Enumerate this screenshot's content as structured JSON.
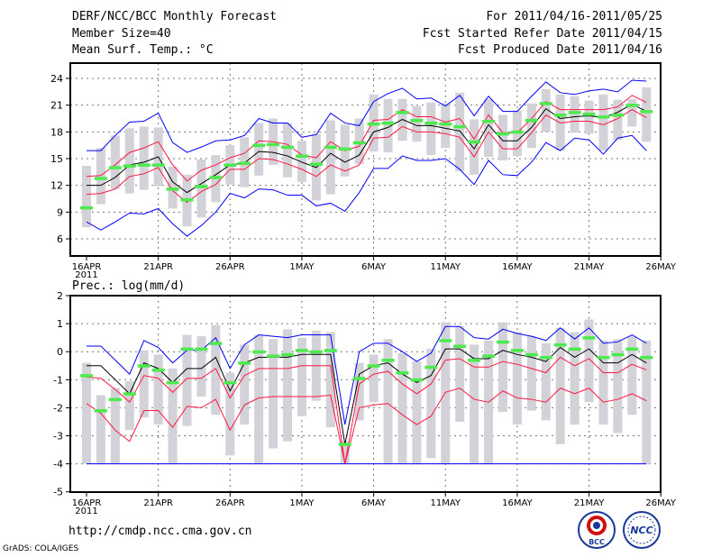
{
  "header": {
    "title": "DERF/NCC/BCC Monthly Forecast",
    "member_size": "Member Size=40",
    "variable": "Mean Surf. Temp.: °C",
    "period": "For 2011/04/16-2011/05/25",
    "start_date": "Fcst Started Refer Date 2011/04/15",
    "produced_date": "Fcst Produced Date 2011/04/16"
  },
  "footer": {
    "url": "http://cmdp.ncc.cma.gov.cn",
    "grads": "GrADS: COLA/IGES",
    "logo_bcc": "BCC",
    "logo_ncc": "NCC"
  },
  "colors": {
    "blue": "#0000ff",
    "red": "#ff1744",
    "median": "#000000",
    "green": "#4cea4c",
    "spread": "#d2d2d8"
  },
  "chart_data": [
    {
      "type": "line",
      "title": "Mean Surf. Temp.: °C",
      "x_ticks": {
        "days": [
          0,
          5,
          10,
          15,
          20,
          25,
          30,
          35,
          40
        ],
        "labels": [
          "16APR",
          "21APR",
          "26APR",
          "1MAY",
          "6MAY",
          "11MAY",
          "16MAY",
          "21MAY",
          "26MAY"
        ],
        "year": "2011"
      },
      "ylim": [
        3,
        25.5
      ],
      "y_ticks": [
        6,
        9,
        12,
        15,
        18,
        21,
        24
      ],
      "grid": true,
      "series": [
        {
          "name": "upper-blue",
          "values": [
            15.9,
            15.9,
            17.6,
            19.1,
            19.2,
            20.1,
            16.8,
            15.7,
            16.3,
            17.0,
            17.1,
            17.6,
            19.5,
            19.0,
            19.0,
            17.4,
            17.7,
            20.1,
            19.0,
            18.7,
            21.4,
            22.3,
            22.9,
            21.7,
            21.8,
            20.9,
            22.1,
            19.8,
            22.0,
            20.3,
            20.3,
            22.0,
            23.6,
            22.4,
            22.2,
            22.6,
            22.8,
            22.5,
            23.8,
            23.7
          ]
        },
        {
          "name": "upper-red",
          "values": [
            13.0,
            13.1,
            14.3,
            15.7,
            16.2,
            16.9,
            14.3,
            12.5,
            13.7,
            14.3,
            15.1,
            15.6,
            17.0,
            16.9,
            16.6,
            15.4,
            15.1,
            16.9,
            15.9,
            16.4,
            19.3,
            19.4,
            20.5,
            19.7,
            19.7,
            19.1,
            19.5,
            17.2,
            19.9,
            17.9,
            17.9,
            19.5,
            21.4,
            20.5,
            20.5,
            20.5,
            20.5,
            20.8,
            22.1,
            21.3
          ]
        },
        {
          "name": "median",
          "values": [
            12.0,
            12.0,
            12.9,
            14.3,
            14.6,
            15.2,
            12.4,
            11.2,
            12.2,
            13.2,
            14.3,
            14.5,
            15.8,
            15.7,
            15.3,
            14.6,
            14.0,
            15.6,
            14.6,
            15.4,
            18.0,
            18.5,
            19.4,
            18.7,
            18.7,
            18.4,
            18.1,
            16.1,
            18.8,
            17.0,
            17.0,
            18.5,
            20.6,
            19.5,
            19.7,
            19.8,
            19.6,
            20.2,
            21.1,
            20.3
          ]
        },
        {
          "name": "lower-red",
          "values": [
            11.0,
            11.1,
            11.6,
            13.0,
            13.3,
            14.0,
            11.4,
            10.1,
            11.3,
            12.1,
            13.8,
            13.8,
            15.0,
            14.9,
            14.4,
            13.8,
            13.0,
            14.3,
            13.6,
            14.3,
            17.3,
            17.4,
            18.6,
            18.0,
            18.0,
            17.8,
            17.4,
            15.2,
            18.0,
            16.1,
            16.1,
            17.9,
            19.9,
            19.0,
            19.2,
            19.2,
            18.8,
            19.5,
            20.5,
            19.6
          ]
        },
        {
          "name": "lower-blue",
          "values": [
            7.9,
            7.0,
            7.9,
            8.9,
            8.8,
            9.4,
            7.7,
            6.3,
            7.5,
            9.0,
            11.1,
            10.6,
            11.6,
            11.5,
            10.9,
            10.9,
            9.7,
            10.0,
            9.1,
            11.2,
            13.9,
            13.9,
            15.3,
            14.8,
            14.8,
            15.0,
            13.8,
            12.1,
            14.8,
            13.2,
            13.1,
            14.6,
            16.8,
            15.9,
            17.3,
            17.1,
            15.5,
            17.3,
            17.6,
            15.9
          ]
        },
        {
          "name": "green",
          "values": [
            9.5,
            12.8,
            14.0,
            14.2,
            14.3,
            14.3,
            11.6,
            10.4,
            11.9,
            12.9,
            14.3,
            14.5,
            16.5,
            16.6,
            16.3,
            15.3,
            14.4,
            16.3,
            16.1,
            16.8,
            18.9,
            19.0,
            20.2,
            19.3,
            19.0,
            18.9,
            18.6,
            16.9,
            19.2,
            17.8,
            18.0,
            19.3,
            21.2,
            19.9,
            20.2,
            20.0,
            19.7,
            19.9,
            21.0,
            20.3
          ]
        }
      ],
      "spread_max": [
        14.2,
        16.2,
        17.6,
        18.4,
        18.6,
        18.5,
        14.1,
        13.2,
        14.9,
        15.4,
        16.5,
        17.4,
        19.0,
        19.5,
        19.0,
        17.0,
        17.8,
        19.3,
        18.8,
        19.5,
        22.2,
        21.7,
        21.7,
        20.9,
        21.3,
        21.2,
        22.4,
        19.4,
        21.7,
        19.9,
        20.4,
        21.2,
        22.8,
        22.2,
        22.0,
        21.5,
        22.2,
        21.6,
        21.7,
        23.0
      ],
      "spread_min": [
        7.3,
        9.9,
        11.6,
        11.1,
        11.5,
        11.9,
        9.4,
        7.4,
        8.4,
        10.1,
        12.1,
        11.8,
        13.1,
        14.3,
        12.9,
        12.4,
        10.3,
        11.0,
        13.0,
        14.4,
        15.8,
        15.7,
        17.0,
        16.9,
        15.4,
        16.2,
        13.6,
        13.2,
        15.2,
        14.8,
        15.3,
        16.2,
        18.0,
        15.9,
        17.9,
        17.8,
        15.9,
        17.1,
        18.6,
        16.9
      ]
    },
    {
      "type": "line",
      "title": "Prec.: log(mm/d)",
      "x_ticks": {
        "days": [
          0,
          5,
          10,
          15,
          20,
          25,
          30,
          35,
          40
        ],
        "labels": [
          "16APR",
          "21APR",
          "26APR",
          "1MAY",
          "6MAY",
          "11MAY",
          "16MAY",
          "21MAY",
          "26MAY"
        ],
        "year": "2011"
      },
      "ylim": [
        -5,
        2
      ],
      "y_ticks": [
        2,
        1,
        0,
        -1,
        -2,
        -3,
        -4,
        -5
      ],
      "grid": true,
      "series": [
        {
          "name": "upper-blue",
          "values": [
            0.2,
            0.2,
            -0.3,
            -0.8,
            0.4,
            0.15,
            -0.4,
            0.05,
            0.05,
            0.5,
            -0.6,
            0.25,
            0.6,
            0.55,
            0.5,
            0.6,
            0.6,
            0.6,
            -2.6,
            0,
            0.3,
            0.3,
            0,
            -0.35,
            -0.05,
            0.9,
            0.9,
            0.5,
            0.45,
            0.8,
            0.65,
            0.55,
            0.4,
            0.85,
            0.45,
            0.85,
            0.3,
            0.35,
            0.6,
            0.3
          ]
        },
        {
          "name": "upper-red",
          "values": [
            -0.9,
            -0.95,
            -1.35,
            -1.8,
            -0.85,
            -0.95,
            -1.45,
            -0.95,
            -0.95,
            -0.6,
            -1.65,
            -0.85,
            -0.6,
            -0.6,
            -0.6,
            -0.5,
            -0.5,
            -0.5,
            -4.0,
            -1.15,
            -0.8,
            -0.7,
            -1.15,
            -1.5,
            -1.15,
            -0.3,
            -0.25,
            -0.55,
            -0.55,
            -0.35,
            -0.45,
            -0.6,
            -0.75,
            -0.2,
            -0.5,
            -0.25,
            -0.75,
            -0.75,
            -0.45,
            -0.65
          ]
        },
        {
          "name": "median",
          "values": [
            -0.5,
            -0.5,
            -1.0,
            -1.5,
            -0.4,
            -0.6,
            -1.1,
            -0.6,
            -0.6,
            -0.2,
            -1.4,
            -0.4,
            -0.2,
            -0.2,
            -0.2,
            -0.1,
            -0.1,
            -0.1,
            -3.3,
            -0.8,
            -0.5,
            -0.4,
            -0.8,
            -1.1,
            -0.85,
            0.1,
            0.1,
            -0.25,
            -0.25,
            0.05,
            -0.1,
            -0.2,
            -0.35,
            0.15,
            -0.2,
            0.1,
            -0.4,
            -0.4,
            -0.1,
            -0.4
          ]
        },
        {
          "name": "lower-red",
          "values": [
            -1.85,
            -2.2,
            -2.8,
            -3.2,
            -2.1,
            -2.1,
            -2.7,
            -1.95,
            -2.0,
            -1.7,
            -2.8,
            -1.9,
            -1.65,
            -1.6,
            -1.6,
            -1.6,
            -1.6,
            -1.55,
            -4.0,
            -2.0,
            -1.9,
            -1.85,
            -2.25,
            -2.6,
            -2.3,
            -1.45,
            -1.3,
            -1.7,
            -1.8,
            -1.4,
            -1.65,
            -1.7,
            -1.8,
            -1.3,
            -1.5,
            -1.3,
            -1.8,
            -1.7,
            -1.5,
            -1.75
          ]
        },
        {
          "name": "lower-blue",
          "values": [
            -4,
            -4,
            -4,
            -4,
            -4,
            -4,
            -4,
            -4,
            -4,
            -4,
            -4,
            -4,
            -4,
            -4,
            -4,
            -4,
            -4,
            -4,
            -4,
            -4,
            -4,
            -4,
            -4,
            -4,
            -4,
            -4,
            -4,
            -4,
            -4,
            -4,
            -4,
            -4,
            -4,
            -4,
            -4,
            -4,
            -4,
            -4,
            -4,
            -4
          ]
        },
        {
          "name": "green",
          "values": [
            -0.85,
            -2.1,
            -1.7,
            -1.5,
            -0.5,
            -0.65,
            -1.1,
            0.1,
            0.1,
            0.3,
            -1.1,
            -0.4,
            0,
            -0.15,
            -0.1,
            0.05,
            0,
            0.05,
            -3.3,
            -0.95,
            -0.5,
            -0.3,
            -0.75,
            -1.0,
            -0.55,
            0.4,
            0.2,
            -0.3,
            -0.15,
            0.35,
            0.05,
            -0.1,
            -0.2,
            0.25,
            0.1,
            0.5,
            -0.2,
            -0.1,
            0.1,
            -0.2
          ]
        }
      ],
      "spread_max": [
        -0.4,
        -1.55,
        -1.3,
        -1.05,
        0.05,
        -0.1,
        -0.6,
        0.6,
        0.55,
        0.95,
        -0.75,
        0.25,
        0.6,
        0.45,
        0.8,
        0.5,
        0.75,
        0.7,
        -3.2,
        -0.4,
        -0.1,
        0.45,
        -0.05,
        -0.35,
        0.1,
        1.05,
        0.9,
        0.25,
        0.4,
        1.05,
        0.7,
        0.55,
        0.3,
        0.85,
        0.7,
        1.15,
        0.4,
        0.45,
        0.55,
        0.4
      ],
      "spread_min": [
        -4,
        -4,
        -4,
        -2.8,
        -2.35,
        -2.6,
        -4,
        -2.65,
        -1.6,
        -2.25,
        -3.7,
        -2.6,
        -4,
        -3.45,
        -3.2,
        -2.3,
        -1.75,
        -2.7,
        -4,
        -2.45,
        -1.8,
        -4,
        -4,
        -4,
        -3.8,
        -4,
        -2.5,
        -4,
        -4,
        -2.15,
        -2.6,
        -2.1,
        -2.45,
        -3.3,
        -2.6,
        -1.8,
        -2.6,
        -2.9,
        -2.25,
        -4
      ]
    }
  ]
}
